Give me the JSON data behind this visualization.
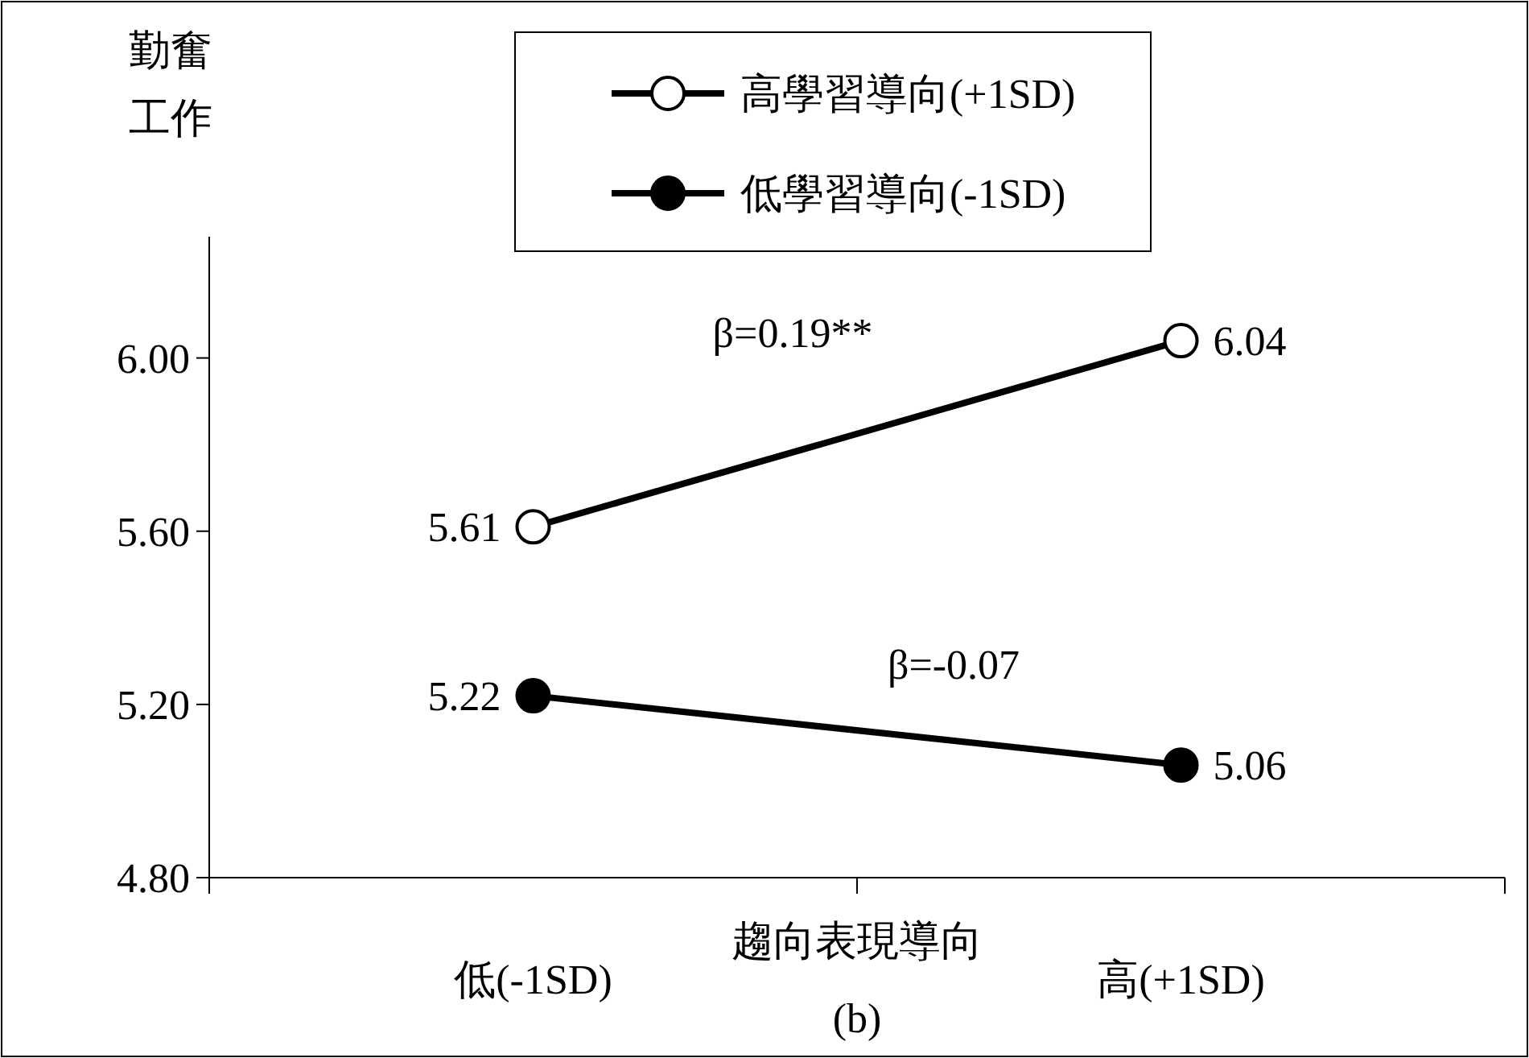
{
  "chart_data": {
    "type": "line",
    "ylabel": "勤奮工作",
    "xlabel": "趨向表現導向",
    "categories": [
      "低(-1SD)",
      "高(+1SD)"
    ],
    "series": [
      {
        "name": "高學習導向(+1SD)",
        "color": "#ffffff",
        "values": [
          5.61,
          6.04
        ]
      },
      {
        "name": "低學習導向(-1SD)",
        "color": "#000000",
        "values": [
          5.22,
          5.06
        ]
      }
    ],
    "annotations": [
      "β=0.19**",
      "β=-0.07",
      "(b)"
    ],
    "ylim": [
      4.8,
      6.28
    ],
    "yticks": [
      {
        "value": 4.8,
        "label": "4.80"
      },
      {
        "value": 5.2,
        "label": "5.20"
      },
      {
        "value": 5.6,
        "label": "5.60"
      },
      {
        "value": 6.0,
        "label": "6.00"
      }
    ],
    "data_labels": true,
    "legend": "top",
    "marker": "circle",
    "line_style": "solid",
    "grid": false
  }
}
